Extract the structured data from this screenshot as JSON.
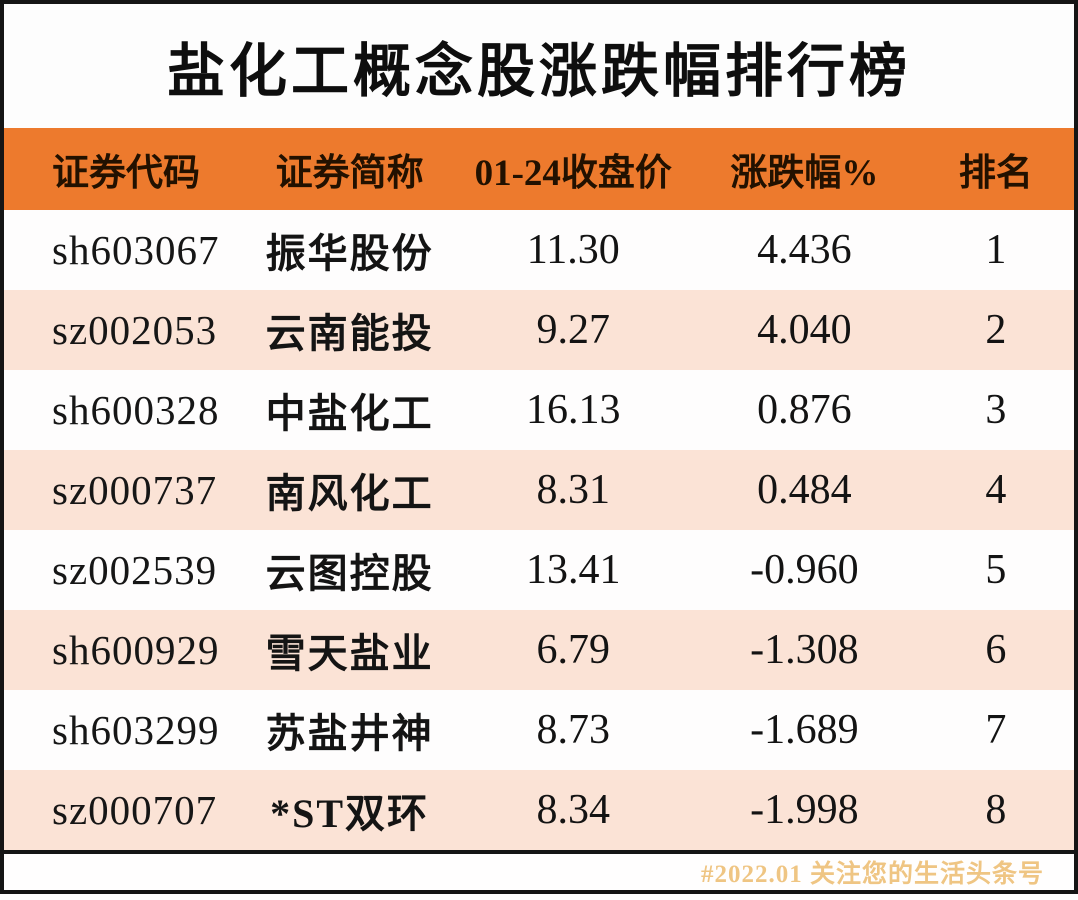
{
  "title": "盐化工概念股涨跌幅排行榜",
  "colors": {
    "header_bg": "#ED7A2D",
    "alt_row_bg": "#FBE3D6",
    "frame_border": "#151515",
    "header_text": "#221100",
    "watermark_text": "#EFC583"
  },
  "chart_data": {
    "type": "table",
    "title": "盐化工概念股涨跌幅排行榜",
    "columns": [
      "证券代码",
      "证券简称",
      "01-24收盘价",
      "涨跌幅%",
      "排名"
    ],
    "rows": [
      [
        "sh603067",
        "振华股份",
        "11.30",
        "4.436",
        "1"
      ],
      [
        "sz002053",
        "云南能投",
        "9.27",
        "4.040",
        "2"
      ],
      [
        "sh600328",
        "中盐化工",
        "16.13",
        "0.876",
        "3"
      ],
      [
        "sz000737",
        "南风化工",
        "8.31",
        "0.484",
        "4"
      ],
      [
        "sz002539",
        "云图控股",
        "13.41",
        "-0.960",
        "5"
      ],
      [
        "sh600929",
        "雪天盐业",
        "6.79",
        "-1.308",
        "6"
      ],
      [
        "sh603299",
        "苏盐井神",
        "8.73",
        "-1.689",
        "7"
      ],
      [
        "sz000707",
        "*ST双环",
        "8.34",
        "-1.998",
        "8"
      ]
    ]
  },
  "footer": {
    "watermark": "#2022.01 关注您的生活头条号"
  }
}
